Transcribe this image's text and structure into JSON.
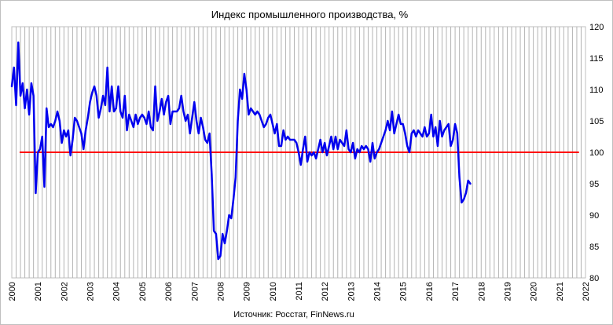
{
  "chart_data": {
    "type": "line",
    "title": "Индекс промышленного производства, %",
    "source_note": "Источник: Росстат, FinNews.ru",
    "xlabel": "",
    "ylabel": "",
    "x_ticks": [
      "2000",
      "2001",
      "2002",
      "2003",
      "2004",
      "2005",
      "2006",
      "2007",
      "2008",
      "2009",
      "2010",
      "2011",
      "2012",
      "2013",
      "2014",
      "2015",
      "2016",
      "2017",
      "2018",
      "2019",
      "2020",
      "2021",
      "2022"
    ],
    "y_ticks": [
      "80",
      "85",
      "90",
      "95",
      "100",
      "105",
      "110",
      "115",
      "120"
    ],
    "xlim": [
      2000,
      2022
    ],
    "ylim": [
      80,
      120
    ],
    "grid": "vertical-monthly",
    "reference_line": {
      "y": 100,
      "x_start": 2000.3,
      "x_end": 2021.75,
      "color": "#ff0000"
    },
    "line_color": "#0000ee",
    "series": [
      {
        "x_start": 2000.0,
        "x_step": 0.08333,
        "values": [
          110.5,
          113.5,
          107.5,
          117.5,
          109.0,
          111.0,
          107.0,
          110.0,
          106.0,
          111.0,
          109.0,
          93.5,
          100.0,
          100.5,
          102.5,
          94.5,
          107.0,
          104.0,
          104.5,
          104.0,
          105.0,
          106.5,
          105.0,
          101.5,
          103.5,
          102.5,
          103.5,
          99.5,
          102.0,
          105.5,
          105.0,
          104.0,
          103.0,
          100.5,
          103.5,
          105.5,
          108.0,
          109.5,
          110.5,
          109.0,
          105.5,
          107.0,
          109.0,
          107.5,
          113.5,
          106.5,
          110.5,
          106.5,
          107.0,
          110.5,
          106.5,
          105.5,
          109.0,
          103.5,
          106.0,
          105.0,
          104.0,
          106.0,
          104.5,
          105.5,
          106.0,
          105.5,
          104.5,
          106.5,
          104.0,
          103.5,
          110.5,
          105.0,
          106.5,
          108.5,
          106.0,
          108.0,
          109.0,
          104.5,
          106.5,
          106.5,
          106.5,
          107.0,
          109.0,
          106.5,
          105.0,
          106.0,
          103.0,
          105.5,
          108.0,
          105.0,
          103.0,
          105.5,
          104.0,
          102.0,
          101.5,
          103.0,
          96.5,
          87.5,
          87.0,
          83.0,
          83.5,
          87.0,
          85.5,
          87.5,
          90.0,
          89.5,
          92.5,
          96.0,
          105.0,
          110.0,
          108.5,
          112.5,
          110.0,
          106.0,
          107.0,
          106.5,
          106.0,
          106.5,
          106.0,
          105.0,
          104.0,
          104.5,
          105.5,
          106.0,
          104.5,
          103.0,
          104.5,
          101.0,
          101.0,
          103.5,
          102.0,
          102.5,
          102.0,
          102.0,
          102.0,
          101.5,
          100.0,
          98.0,
          100.5,
          102.5,
          98.5,
          100.0,
          99.5,
          100.0,
          99.0,
          100.5,
          102.0,
          100.0,
          101.5,
          99.5,
          101.0,
          102.5,
          100.5,
          102.5,
          100.5,
          102.0,
          101.5,
          101.0,
          103.5,
          100.5,
          100.0,
          101.5,
          99.0,
          100.5,
          100.0,
          101.0,
          100.5,
          101.0,
          100.5,
          98.5,
          101.5,
          99.0,
          100.0,
          100.5,
          101.5,
          102.5,
          103.5,
          105.0,
          103.5,
          106.5,
          103.0,
          104.5,
          106.0,
          104.5,
          104.5,
          103.0,
          101.0,
          100.0,
          103.0,
          103.5,
          102.5,
          103.5,
          103.0,
          102.5,
          104.0,
          102.5,
          103.0,
          106.0,
          102.5,
          104.0,
          101.0,
          105.0,
          102.5,
          103.5,
          104.0,
          104.5,
          101.0,
          102.0,
          104.5,
          103.0,
          96.0,
          92.0,
          92.5,
          93.5,
          95.5,
          95.0
        ]
      }
    ]
  }
}
